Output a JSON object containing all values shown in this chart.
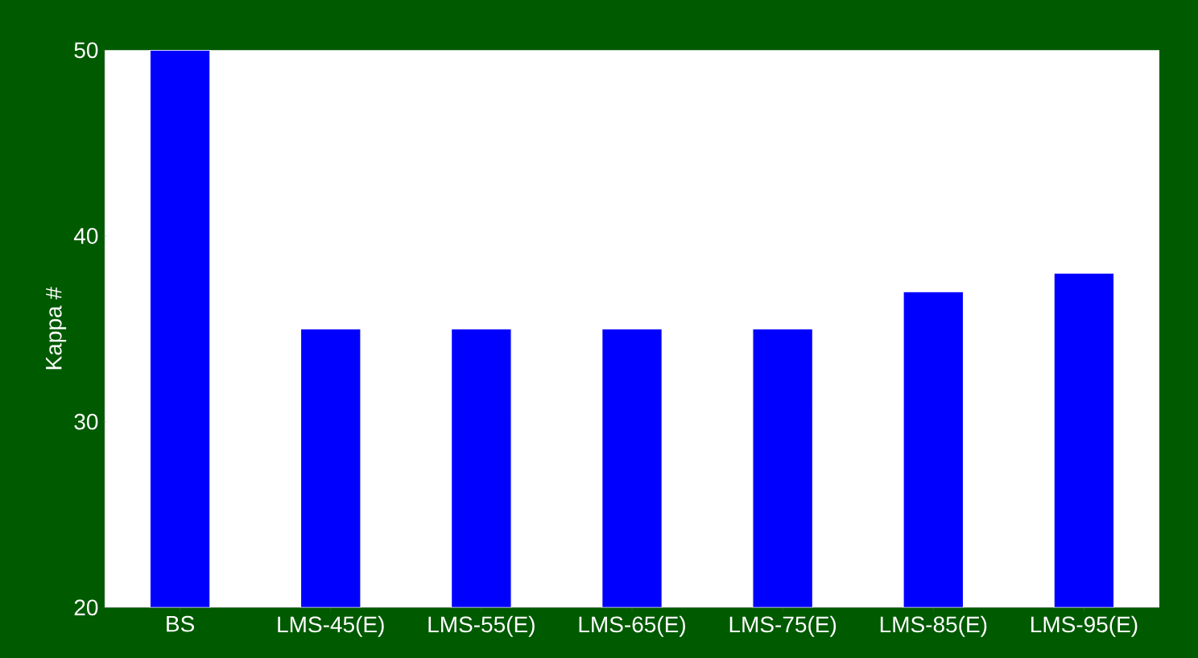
{
  "chart_data": {
    "type": "bar",
    "ylabel": "Kappa #",
    "categories": [
      "BS",
      "LMS-45(E)",
      "LMS-55(E)",
      "LMS-65(E)",
      "LMS-75(E)",
      "LMS-85(E)",
      "LMS-95(E)"
    ],
    "values": [
      50,
      35,
      35,
      35,
      35,
      37,
      38
    ],
    "color": "#0000ff",
    "ylim": [
      20,
      50
    ],
    "yticks": [
      20,
      30,
      40,
      50
    ],
    "grid": false
  }
}
